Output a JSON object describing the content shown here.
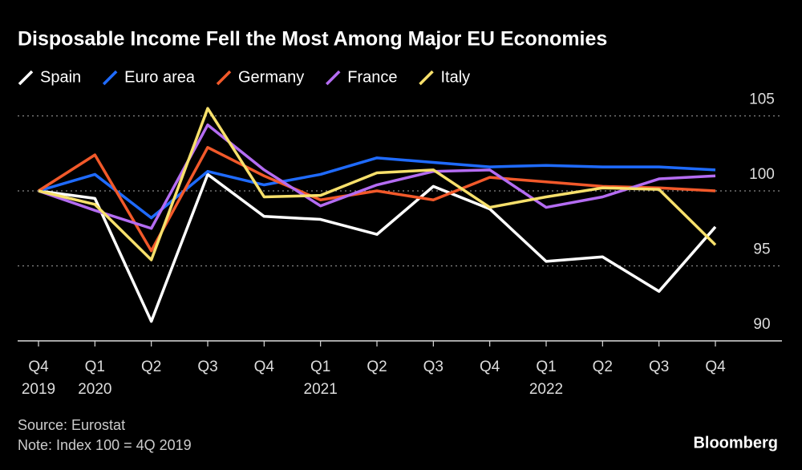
{
  "chart_data": {
    "type": "line",
    "title": "Disposable Income Fell the Most Among Major EU Economies",
    "categories": [
      "Q4",
      "Q1",
      "Q2",
      "Q3",
      "Q4",
      "Q1",
      "Q2",
      "Q3",
      "Q4",
      "Q1",
      "Q2",
      "Q3",
      "Q4"
    ],
    "year_labels": [
      "2019",
      "2020",
      null,
      null,
      null,
      "2021",
      null,
      null,
      null,
      "2022",
      null,
      null,
      null
    ],
    "series": [
      {
        "name": "Spain",
        "color": "#ffffff",
        "values": [
          100,
          99.5,
          91.3,
          101.1,
          98.3,
          98.1,
          97.1,
          100.3,
          98.8,
          95.3,
          95.6,
          93.3,
          97.6
        ]
      },
      {
        "name": "Euro area",
        "color": "#1f6bff",
        "values": [
          100,
          101.1,
          98.2,
          101.3,
          100.4,
          101.1,
          102.2,
          101.9,
          101.6,
          101.7,
          101.6,
          101.6,
          101.4
        ]
      },
      {
        "name": "Germany",
        "color": "#f2592a",
        "values": [
          100,
          102.4,
          96.0,
          102.9,
          101.0,
          99.4,
          100,
          99.4,
          100.9,
          100.6,
          100.3,
          100.2,
          100
        ]
      },
      {
        "name": "France",
        "color": "#b46cf2",
        "values": [
          100,
          98.7,
          97.5,
          104.4,
          101.4,
          99.0,
          100.4,
          101.3,
          101.4,
          98.9,
          99.6,
          100.8,
          101.0
        ]
      },
      {
        "name": "Italy",
        "color": "#f7e06b",
        "values": [
          100,
          99.1,
          95.4,
          105.5,
          99.6,
          99.7,
          101.2,
          101.4,
          98.9,
          99.6,
          100.2,
          100.1,
          96.4
        ]
      }
    ],
    "ylim": [
      90,
      106
    ],
    "yticks": [
      90,
      95,
      100,
      105
    ],
    "grid": true,
    "source": "Source: Eurostat",
    "note": "Note: Index 100 = 4Q 2019",
    "brand": "Bloomberg"
  }
}
